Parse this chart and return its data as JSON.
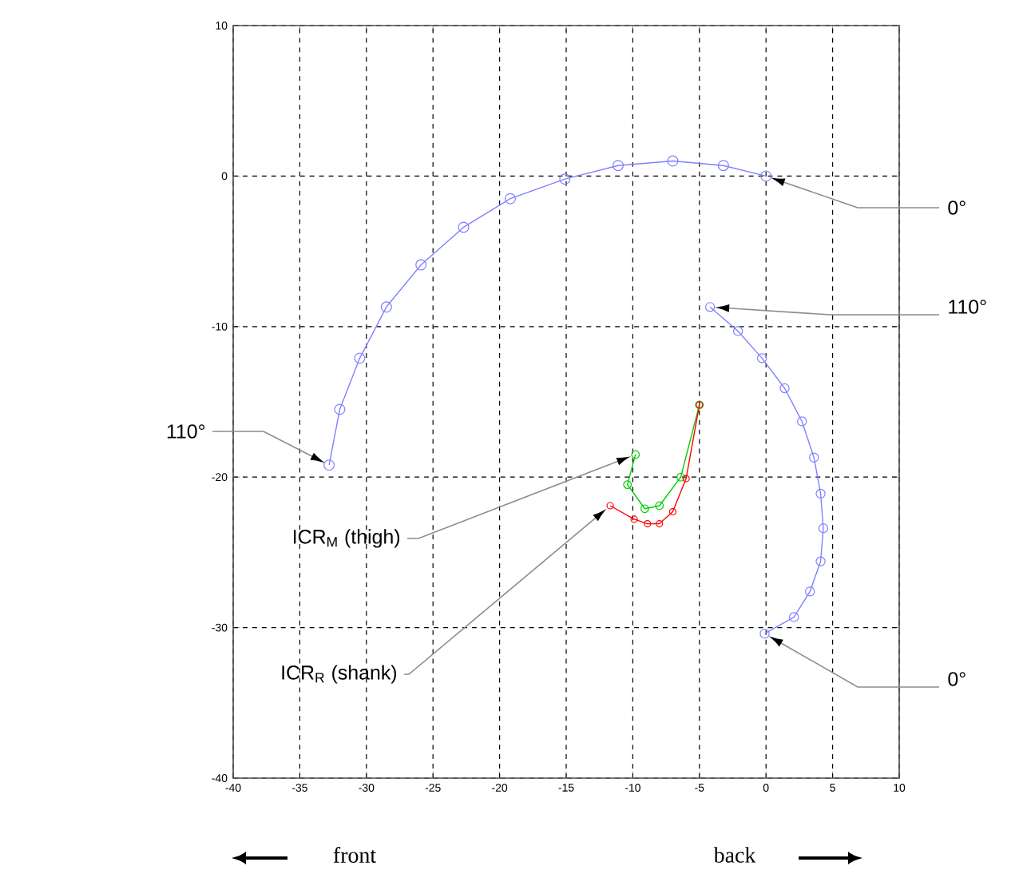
{
  "chart_data": {
    "type": "line",
    "xlim": [
      -40,
      10
    ],
    "ylim": [
      -40,
      10
    ],
    "xticks": [
      -40,
      -35,
      -30,
      -25,
      -20,
      -15,
      -10,
      -5,
      0,
      5,
      10
    ],
    "yticks": [
      -40,
      -30,
      -20,
      -10,
      0,
      10
    ],
    "grid": true,
    "marker": "circle",
    "series": [
      {
        "color": "#8080ff",
        "x": [
          0,
          -3.2,
          -7.0,
          -11.1,
          -15.1,
          -19.2,
          -22.7,
          -25.9,
          -28.5,
          -30.5,
          -32.0,
          -32.8
        ],
        "values": [
          0,
          0.7,
          1.0,
          0.7,
          -0.2,
          -1.5,
          -3.4,
          -5.9,
          -8.7,
          -12.1,
          -15.5,
          -19.2
        ]
      },
      {
        "color": "#8080ff",
        "x": [
          -4.2,
          -2.1,
          -0.3,
          1.4,
          2.7,
          3.6,
          4.1,
          4.3,
          4.1,
          3.3,
          2.1,
          -0.1
        ],
        "values": [
          -8.7,
          -10.3,
          -12.1,
          -14.1,
          -16.3,
          -18.7,
          -21.1,
          -23.4,
          -25.6,
          -27.6,
          -29.3,
          -30.4
        ]
      },
      {
        "color": "#00cc00",
        "x": [
          -5.0,
          -6.4,
          -8.0,
          -9.1,
          -10.4,
          -9.8
        ],
        "values": [
          -15.2,
          -20.0,
          -21.9,
          -22.1,
          -20.5,
          -18.5
        ]
      },
      {
        "color": "#ff0000",
        "x": [
          -5.0,
          -6.0,
          -7.0,
          -8.0,
          -8.9,
          -9.9,
          -11.7
        ],
        "values": [
          -15.2,
          -20.1,
          -22.3,
          -23.1,
          -23.1,
          -22.8,
          -21.9
        ]
      }
    ],
    "annotations": [
      "0°",
      "110°",
      "110°",
      "ICR$_{M}$ (thigh)",
      "ICR$_{R}$ (shank)",
      "0°",
      "front",
      "back"
    ]
  }
}
